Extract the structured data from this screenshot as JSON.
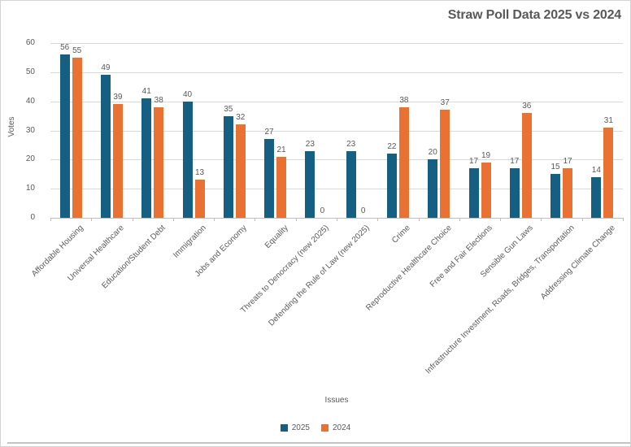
{
  "chart": {
    "title": "Straw Poll Data 2025 vs 2024",
    "colors": {
      "series_2025": "#156082",
      "series_2024": "#E97132",
      "gridline": "#D9D9D9",
      "axis_line": "#BFBFBF",
      "text": "#595959",
      "background": "#FFFFFF",
      "frame_border": "#D4D4D4"
    },
    "legend": [
      {
        "label": "2025",
        "color": "#156082"
      },
      {
        "label": "2024",
        "color": "#E97132"
      }
    ]
  },
  "chart_data": {
    "type": "bar",
    "title": "Straw Poll Data 2025 vs 2024",
    "xlabel": "Issues",
    "ylabel": "Votes",
    "ylim": [
      0,
      60
    ],
    "ytick_interval": 10,
    "yticks": [
      0,
      10,
      20,
      30,
      40,
      50,
      60
    ],
    "grid": true,
    "legend_position": "bottom",
    "data_labels": true,
    "categories": [
      "Affordable Housing",
      "Universal Healthcare",
      "Education/Student Debt",
      "Immigration",
      "Jobs and Economy",
      "Equality",
      "Threats to Denocracy (new 2025)",
      "Defending the Rule of Law (new 2025)",
      "Crime",
      "Reproductive Healthcare Choice",
      "Free and Fair Elections",
      "Sensible Gun Laws",
      "Infrastructure Investment, Roads, Bridges, Transportation",
      "Addressing Climate Change"
    ],
    "series": [
      {
        "name": "2025",
        "values": [
          56,
          49,
          41,
          40,
          35,
          27,
          23,
          23,
          22,
          20,
          17,
          17,
          15,
          14
        ]
      },
      {
        "name": "2024",
        "values": [
          55,
          39,
          38,
          13,
          32,
          21,
          0,
          0,
          38,
          37,
          19,
          36,
          17,
          31
        ]
      }
    ]
  }
}
